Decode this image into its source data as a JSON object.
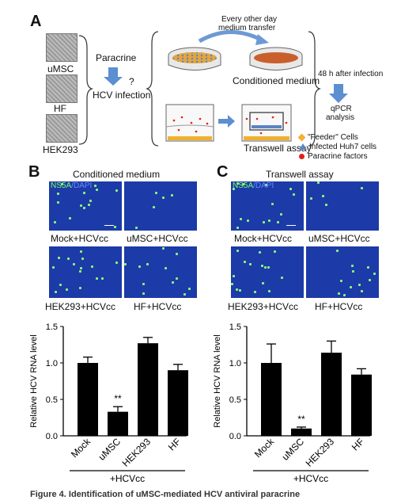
{
  "panelA": {
    "letter": "A",
    "cells": [
      "uMSC",
      "HF",
      "HEK293"
    ],
    "paracrine": "Paracrine",
    "question": "?",
    "hcv_infection": "HCV infection",
    "transfer_line1": "Every other day",
    "transfer_line2": "medium transfer",
    "conditioned_medium": "Conditioned medium",
    "transwell_assay": "Transwell assay",
    "after_infection": "48 h after infection",
    "qpcr_line1": "qPCR",
    "qpcr_line2": "analysis",
    "legend": [
      {
        "label": "\"Feeder\" Cells",
        "color": "#f2b233"
      },
      {
        "label": "Infected Huh7 cells",
        "color": "#5b84c4"
      },
      {
        "label": "Paracrine factors",
        "color": "#e0201b"
      }
    ]
  },
  "panelB": {
    "letter": "B",
    "title": "Conditioned medium",
    "stain_ns5a": "NS5A",
    "stain_sep": "/",
    "stain_dapi": "DAPI",
    "images": [
      "Mock+HCVcc",
      "uMSC+HCVcc",
      "HEK293+HCVcc",
      "HF+HCVcc"
    ]
  },
  "panelC": {
    "letter": "C",
    "title": "Transwell assay",
    "stain_ns5a": "NS5A",
    "stain_sep": "/",
    "stain_dapi": "DAPI",
    "images": [
      "Mock+HCVcc",
      "uMSC+HCVcc",
      "HEK293+HCVcc",
      "HF+HCVcc"
    ]
  },
  "chart_data": [
    {
      "type": "bar",
      "categories": [
        "Mock",
        "uMSC",
        "HEK293",
        "HF"
      ],
      "values": [
        1.0,
        0.33,
        1.27,
        0.9
      ],
      "errors": [
        0.08,
        0.07,
        0.08,
        0.08
      ],
      "annotations": [
        {
          "category": "uMSC",
          "text": "**"
        }
      ],
      "ylabel": "Relative HCV RNA level",
      "xgroup_label": "+HCVcc",
      "ylim": [
        0,
        1.5
      ],
      "yticks": [
        "0.0",
        "0.5",
        "1.0",
        "1.5"
      ]
    },
    {
      "type": "bar",
      "categories": [
        "Mock",
        "uMSC",
        "HEK293",
        "HF"
      ],
      "values": [
        1.0,
        0.1,
        1.14,
        0.84
      ],
      "errors": [
        0.26,
        0.02,
        0.16,
        0.08
      ],
      "annotations": [
        {
          "category": "uMSC",
          "text": "**"
        }
      ],
      "ylabel": "Relative HCV RNA level",
      "xgroup_label": "+HCVcc",
      "ylim": [
        0,
        1.5
      ],
      "yticks": [
        "0.0",
        "0.5",
        "1.0",
        "1.5"
      ]
    }
  ],
  "caption_fragment": "Figure 4. Identification of uMSC-mediated HCV antiviral paracrine"
}
